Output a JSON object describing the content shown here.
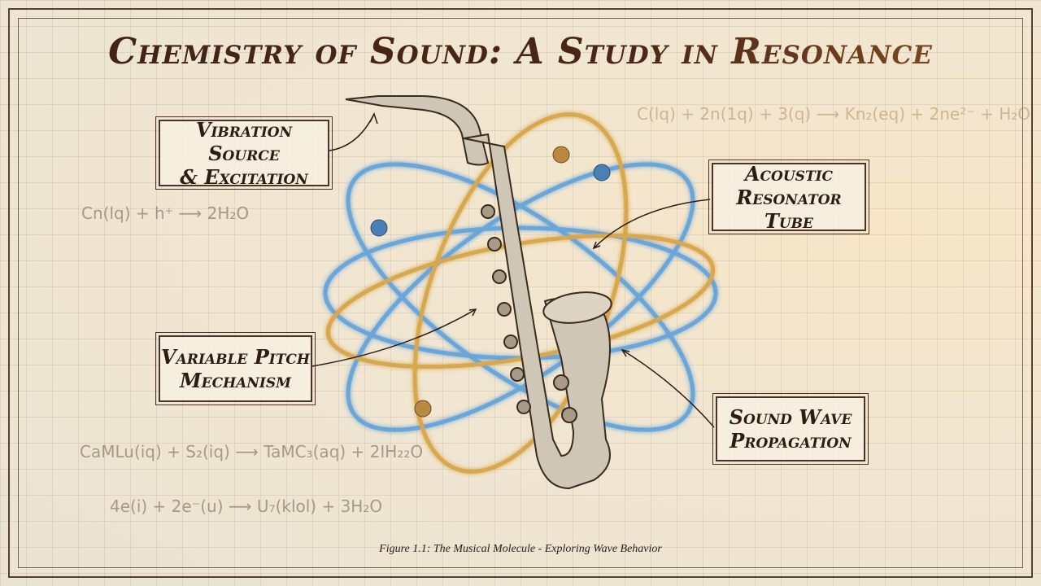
{
  "title": "Chemistry of Sound: A Study in Resonance",
  "labels": {
    "vibration": [
      "Vibration Source",
      "& Excitation"
    ],
    "resonator": [
      "Acoustic",
      "Resonator Tube"
    ],
    "pitch": [
      "Variable Pitch",
      "Mechanism"
    ],
    "propagation": [
      "Sound Wave",
      "Propagation"
    ]
  },
  "equations": {
    "top_right": "C(lq) + 2n(1q) + 3(q) ⟶ Kn₂(eq) + 2ne²⁻ + H₂O",
    "left": "Cn(lq) + h⁺ ⟶ 2H₂O",
    "bottom_1": "CaMLu(iq) + S₂(iq) ⟶ TaMC₃(aq) + 2IH₂₂O",
    "bottom_2": "4e(i) + 2e⁻(u) ⟶ U₇(klol) + 3H₂O"
  },
  "caption": "Figure 1.1: The Musical Molecule - Exploring Wave Behavior",
  "colors": {
    "orbit_blue": "#5a9ad0",
    "orbit_gold": "#d4a24a",
    "ink": "#3c2418"
  }
}
